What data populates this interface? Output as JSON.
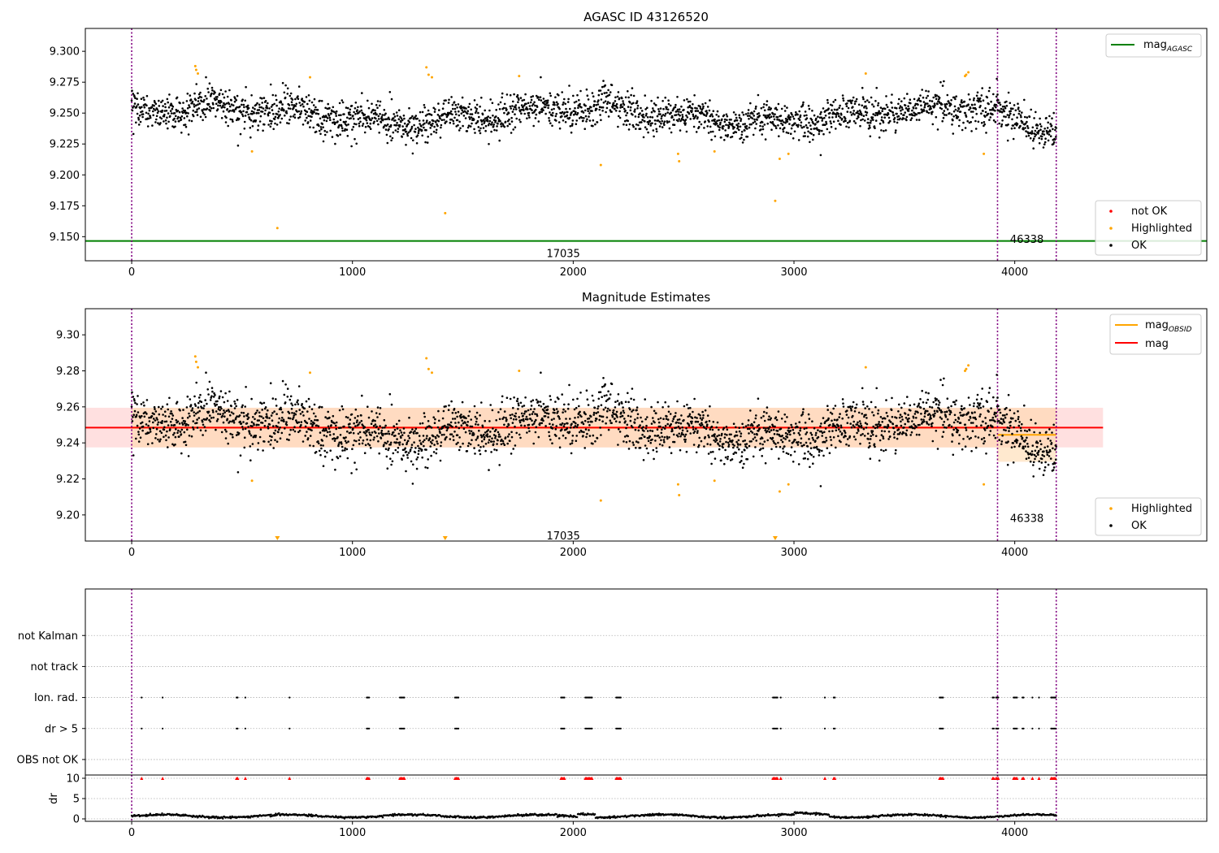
{
  "colors": {
    "ok": "#000000",
    "highlighted": "#ffa500",
    "not_ok": "#ff0000",
    "mag_agasc": "#008000",
    "mag_obsid": "#ffa500",
    "mag": "#ff0000",
    "obsid_boundary": "#800080",
    "band_mag": "#ffcccc",
    "band_obsid": "#ffd7a8",
    "grid": "#b0b0b0"
  },
  "obsid_labels": [
    "17035",
    "46338"
  ],
  "chart_data": [
    {
      "type": "scatter",
      "title": "AGASC ID 43126520",
      "xlabel": "",
      "ylabel": "",
      "xlim": [
        -210,
        4870
      ],
      "ylim": [
        9.1305,
        9.3185
      ],
      "x_ticks": [
        0,
        1000,
        2000,
        3000,
        4000
      ],
      "x_tick_labels": [
        "0",
        "1000",
        "2000",
        "3000",
        "4000"
      ],
      "y_ticks": [
        9.15,
        9.175,
        9.2,
        9.225,
        9.25,
        9.275,
        9.3
      ],
      "y_tick_labels": [
        "9.150",
        "9.175",
        "9.200",
        "9.225",
        "9.250",
        "9.275",
        "9.300"
      ],
      "grid": false,
      "obsid_boundaries": [
        0,
        3922,
        4188
      ],
      "obsid_label_positions": [
        {
          "label": "17035",
          "x": 1955,
          "y": 9.136
        },
        {
          "label": "46338",
          "x": 4055,
          "y": 9.1475
        }
      ],
      "mag_agasc": 9.1465,
      "mag_agasc_range": [
        -210,
        4870
      ],
      "legends": [
        {
          "placement": "upper right",
          "entries": [
            {
              "label": "mag",
              "sub": "AGASC",
              "kind": "line",
              "color": "#008000"
            }
          ]
        },
        {
          "placement": "lower right",
          "entries": [
            {
              "label": "not OK",
              "kind": "dot",
              "color": "#ff0000"
            },
            {
              "label": "Highlighted",
              "kind": "dot",
              "color": "#ffa500"
            },
            {
              "label": "OK",
              "kind": "dot",
              "color": "#000000"
            }
          ]
        }
      ],
      "series": [
        {
          "name": "OK",
          "color": "#000000",
          "generated": true,
          "x_range": [
            0,
            4188
          ],
          "mean": 9.2485,
          "spread": 0.0085
        },
        {
          "name": "Highlighted",
          "color": "#ffa500",
          "x": [
            288,
            292,
            300,
            545,
            660,
            808,
            1335,
            1345,
            1360,
            1420,
            1755,
            2125,
            2475,
            2480,
            2640,
            2915,
            2935,
            2975,
            3325,
            3775,
            3780,
            3790,
            3860
          ],
          "y": [
            9.288,
            9.285,
            9.282,
            9.219,
            9.157,
            9.279,
            9.287,
            9.281,
            9.279,
            9.169,
            9.28,
            9.208,
            9.217,
            9.211,
            9.219,
            9.179,
            9.213,
            9.217,
            9.282,
            9.28,
            9.281,
            9.283,
            9.217
          ]
        }
      ]
    },
    {
      "type": "scatter",
      "title": "Magnitude Estimates",
      "xlabel": "",
      "ylabel": "",
      "xlim": [
        -210,
        4870
      ],
      "ylim": [
        9.1855,
        9.3145
      ],
      "x_ticks": [
        0,
        1000,
        2000,
        3000,
        4000
      ],
      "x_tick_labels": [
        "0",
        "1000",
        "2000",
        "3000",
        "4000"
      ],
      "y_ticks": [
        9.2,
        9.22,
        9.24,
        9.26,
        9.28,
        9.3
      ],
      "y_tick_labels": [
        "9.20",
        "9.22",
        "9.24",
        "9.26",
        "9.28",
        "9.30"
      ],
      "grid": false,
      "obsid_boundaries": [
        0,
        3922,
        4188
      ],
      "obsid_label_positions": [
        {
          "label": "17035",
          "x": 1955,
          "y": 9.1883
        },
        {
          "label": "46338",
          "x": 4055,
          "y": 9.198
        }
      ],
      "mag": 9.2485,
      "mag_band": [
        9.2375,
        9.2595
      ],
      "mag_band_x": [
        -210,
        4400
      ],
      "mag_obsid": [
        {
          "x": [
            0,
            3922
          ],
          "y": 9.2485,
          "band": [
            9.2375,
            9.2595
          ]
        },
        {
          "x": [
            3922,
            4188
          ],
          "y": 9.2445,
          "band": [
            9.2295,
            9.2595
          ]
        }
      ],
      "legends": [
        {
          "placement": "upper right",
          "entries": [
            {
              "label": "mag",
              "sub": "OBSID",
              "kind": "line",
              "color": "#ffa500"
            },
            {
              "label": "mag",
              "kind": "line",
              "color": "#ff0000"
            }
          ]
        },
        {
          "placement": "lower right",
          "entries": [
            {
              "label": "Highlighted",
              "kind": "dot",
              "color": "#ffa500"
            },
            {
              "label": "OK",
              "kind": "dot",
              "color": "#000000"
            }
          ]
        }
      ],
      "series": [
        {
          "name": "OK",
          "color": "#000000",
          "generated": true,
          "x_range": [
            0,
            4188
          ],
          "mean": 9.2485,
          "spread": 0.0085
        },
        {
          "name": "Highlighted",
          "color": "#ffa500",
          "x": [
            288,
            292,
            300,
            545,
            808,
            1335,
            1345,
            1360,
            1755,
            2125,
            2475,
            2480,
            2640,
            2935,
            2975,
            3325,
            3775,
            3780,
            3790,
            3860
          ],
          "y": [
            9.288,
            9.285,
            9.282,
            9.219,
            9.279,
            9.287,
            9.281,
            9.279,
            9.28,
            9.208,
            9.217,
            9.211,
            9.219,
            9.213,
            9.217,
            9.282,
            9.28,
            9.281,
            9.283,
            9.217
          ]
        },
        {
          "name": "Highlighted (below axis)",
          "color": "#ffa500",
          "marker": "triangle-down",
          "x": [
            660,
            1420,
            2915
          ],
          "y": [
            9.186,
            9.186,
            9.186
          ]
        }
      ]
    },
    {
      "type": "scatter",
      "title": "",
      "xlabel": "",
      "ylabel": "",
      "xlim": [
        -210,
        4870
      ],
      "ylim": [
        -0.5,
        5.5
      ],
      "categories": [
        "OBS not OK",
        "dr > 5",
        "Ion. rad.",
        "not track",
        "not Kalman"
      ],
      "category_y": [
        0,
        1,
        2,
        3,
        4
      ],
      "grid": true,
      "obsid_boundaries": [
        0,
        3922,
        4188
      ],
      "series": [
        {
          "name": "dr > 5",
          "color": "#000000",
          "x": [
            45,
            140,
            475,
            480,
            515,
            715,
            1065,
            1070,
            1075,
            1215,
            1220,
            1225,
            1230,
            1235,
            1465,
            1470,
            1475,
            1480,
            1945,
            1950,
            1955,
            1960,
            2055,
            2060,
            2065,
            2070,
            2075,
            2080,
            2085,
            2195,
            2200,
            2205,
            2210,
            2215,
            2905,
            2910,
            2915,
            2920,
            2925,
            2940,
            3140,
            3180,
            3185,
            3660,
            3665,
            3670,
            3675,
            3900,
            3905,
            3915,
            3920,
            3925,
            3995,
            4000,
            4005,
            4010,
            4035,
            4040,
            4080,
            4110,
            4165,
            4170,
            4175,
            4180,
            4185
          ],
          "y": 1
        },
        {
          "name": "Ion. rad.",
          "color": "#000000",
          "x": [
            45,
            140,
            475,
            480,
            515,
            715,
            1065,
            1070,
            1075,
            1215,
            1220,
            1225,
            1230,
            1235,
            1465,
            1470,
            1475,
            1480,
            1945,
            1950,
            1955,
            1960,
            2055,
            2060,
            2065,
            2070,
            2075,
            2080,
            2085,
            2195,
            2200,
            2205,
            2210,
            2215,
            2905,
            2910,
            2915,
            2920,
            2925,
            2940,
            3140,
            3180,
            3185,
            3660,
            3665,
            3670,
            3675,
            3900,
            3905,
            3915,
            3920,
            3925,
            3995,
            4000,
            4005,
            4010,
            4035,
            4040,
            4080,
            4110,
            4165,
            4170,
            4175,
            4180,
            4185
          ],
          "y": 2
        }
      ]
    },
    {
      "type": "line",
      "title": "",
      "xlabel": "",
      "ylabel": "dr",
      "xlim": [
        -210,
        4870
      ],
      "ylim": [
        -0.6,
        10.8
      ],
      "x_ticks": [
        0,
        1000,
        2000,
        3000,
        4000
      ],
      "x_tick_labels": [
        "0",
        "1000",
        "2000",
        "3000",
        "4000"
      ],
      "y_ticks": [
        0,
        5,
        10
      ],
      "y_tick_labels": [
        "0",
        "5",
        "10"
      ],
      "grid": true,
      "obsid_boundaries": [
        0,
        3922,
        4188
      ],
      "series": [
        {
          "name": "dr",
          "color": "#000000",
          "generated": true,
          "x_range": [
            0,
            4188
          ],
          "mean": 0.7,
          "spread": 0.35
        },
        {
          "name": "dr > 5 (clipped)",
          "color": "#ff0000",
          "marker": "triangle-up",
          "y": 10,
          "x": [
            45,
            140,
            475,
            480,
            515,
            715,
            1065,
            1070,
            1075,
            1215,
            1220,
            1225,
            1230,
            1235,
            1465,
            1470,
            1475,
            1480,
            1945,
            1950,
            1955,
            1960,
            2055,
            2060,
            2065,
            2070,
            2075,
            2080,
            2085,
            2195,
            2200,
            2205,
            2210,
            2215,
            2905,
            2910,
            2915,
            2920,
            2925,
            2940,
            3140,
            3180,
            3185,
            3660,
            3665,
            3670,
            3675,
            3900,
            3905,
            3915,
            3920,
            3925,
            3995,
            4000,
            4005,
            4010,
            4035,
            4040,
            4080,
            4110,
            4165,
            4170,
            4175,
            4180,
            4185
          ]
        }
      ]
    }
  ]
}
